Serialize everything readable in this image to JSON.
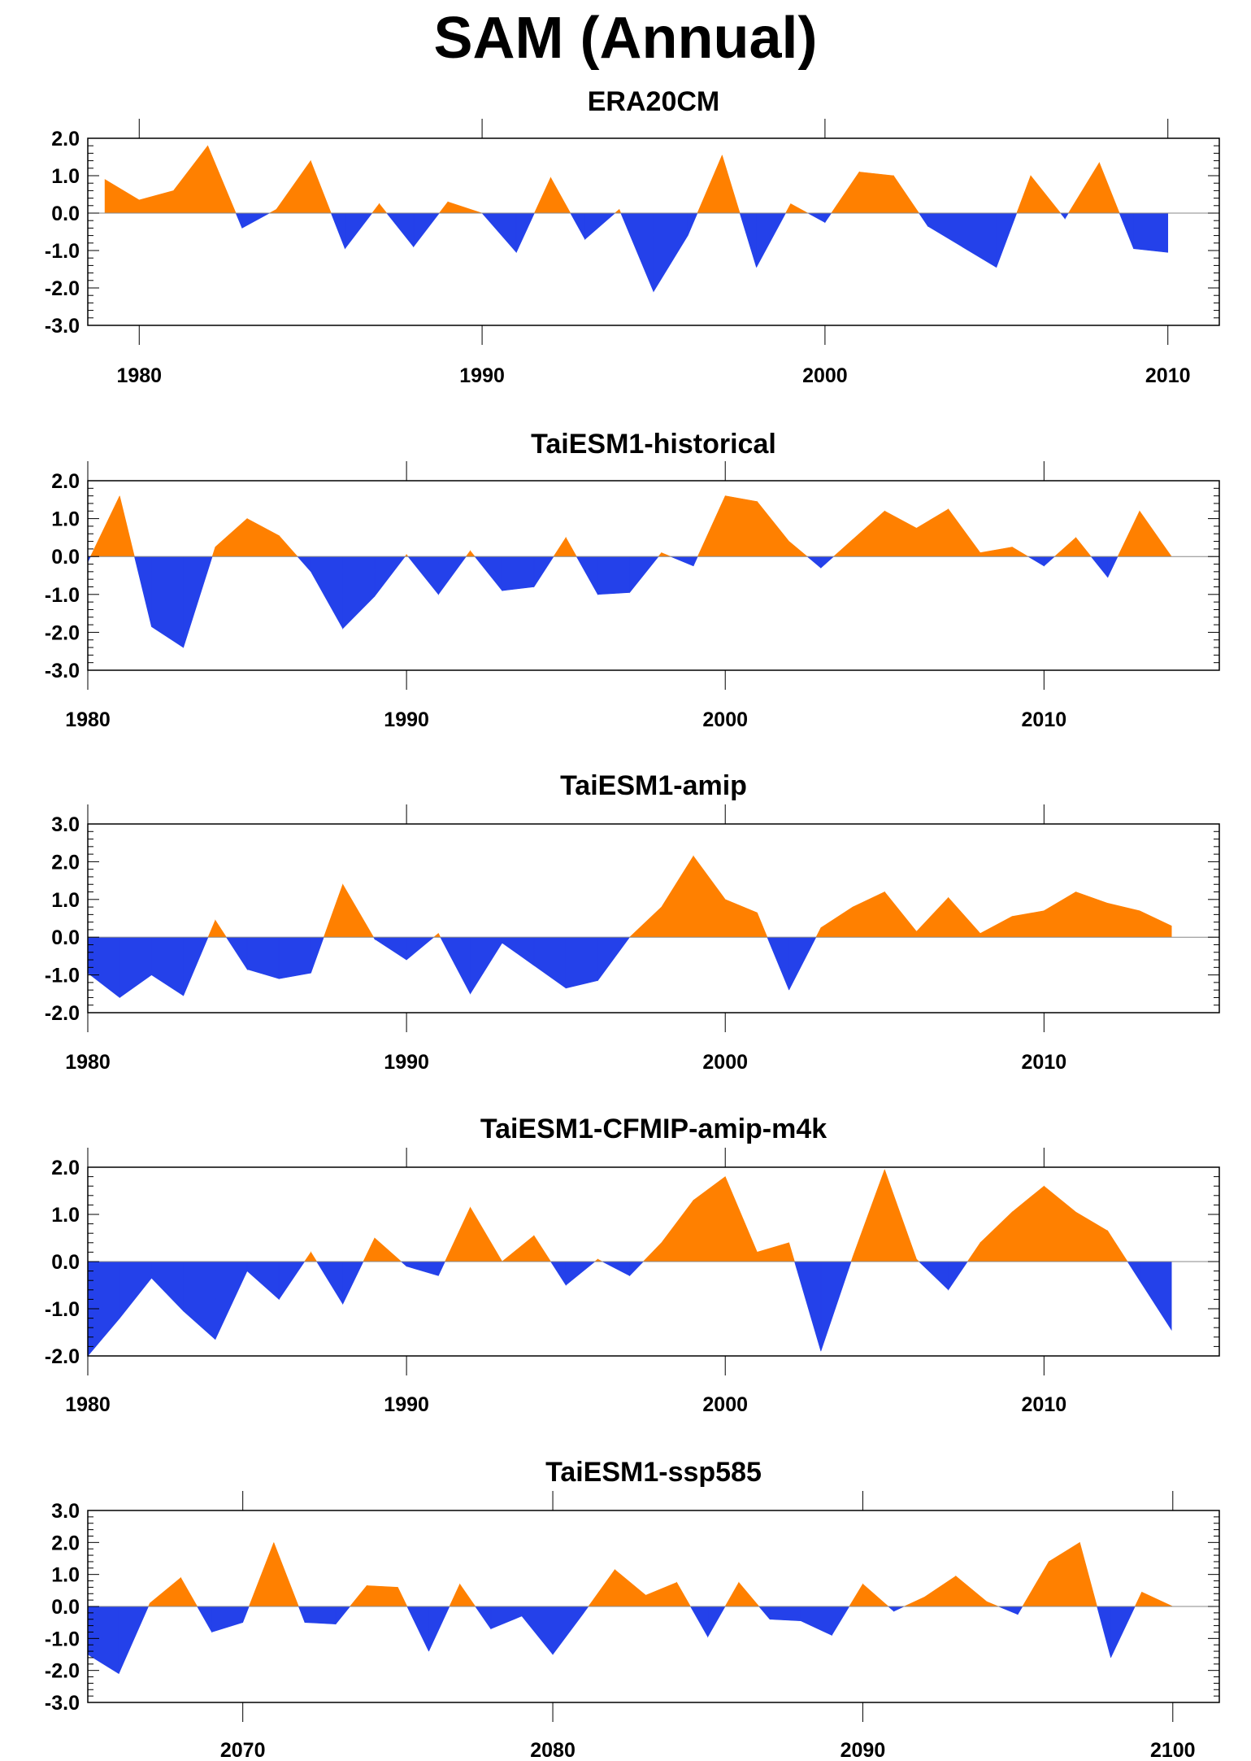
{
  "title": "SAM (Annual)",
  "colors": {
    "positive": "#ff8000",
    "negative": "#2441ea",
    "axis": "#000000"
  },
  "chart_data": [
    {
      "type": "area",
      "title": "ERA20CM",
      "xlabel": "",
      "ylabel": "",
      "xlim": [
        1978.5,
        2011.5
      ],
      "ylim": [
        -3.0,
        2.0
      ],
      "xticks": [
        1980,
        1990,
        2000,
        2010
      ],
      "yticks": [
        -3.0,
        -2.0,
        -1.0,
        0.0,
        1.0,
        2.0
      ],
      "x": [
        1979,
        1980,
        1981,
        1982,
        1983,
        1984,
        1985,
        1986,
        1987,
        1988,
        1989,
        1990,
        1991,
        1992,
        1993,
        1994,
        1995,
        1996,
        1997,
        1998,
        1999,
        2000,
        2001,
        2002,
        2003,
        2004,
        2005,
        2006,
        2007,
        2008,
        2009,
        2010
      ],
      "y": [
        0.9,
        0.35,
        0.6,
        1.8,
        -0.4,
        0.1,
        1.4,
        -0.95,
        0.25,
        -0.9,
        0.3,
        0.0,
        -1.05,
        0.95,
        -0.7,
        0.1,
        -2.1,
        -0.6,
        1.55,
        -1.45,
        0.25,
        -0.25,
        1.1,
        1.0,
        -0.35,
        -0.9,
        -1.45,
        1.0,
        -0.15,
        1.35,
        -0.95,
        -1.05
      ]
    },
    {
      "type": "area",
      "title": "TaiESM1-historical",
      "xlabel": "",
      "ylabel": "",
      "xlim": [
        1980,
        2015.5
      ],
      "ylim": [
        -3.0,
        2.0
      ],
      "xticks": [
        1980,
        1990,
        2000,
        2010
      ],
      "yticks": [
        -3.0,
        -2.0,
        -1.0,
        0.0,
        1.0,
        2.0
      ],
      "x": [
        1980,
        1981,
        1982,
        1983,
        1984,
        1985,
        1986,
        1987,
        1988,
        1989,
        1990,
        1991,
        1992,
        1993,
        1994,
        1995,
        1996,
        1997,
        1998,
        1999,
        2000,
        2001,
        2002,
        2003,
        2004,
        2005,
        2006,
        2007,
        2008,
        2009,
        2010,
        2011,
        2012,
        2013,
        2014
      ],
      "y": [
        -0.15,
        1.6,
        -1.85,
        -2.4,
        0.25,
        1.0,
        0.55,
        -0.4,
        -1.9,
        -1.05,
        0.05,
        -1.0,
        0.15,
        -0.9,
        -0.8,
        0.5,
        -1.0,
        -0.95,
        0.1,
        -0.25,
        1.6,
        1.45,
        0.4,
        -0.3,
        0.45,
        1.2,
        0.75,
        1.25,
        0.1,
        0.25,
        -0.25,
        0.5,
        -0.55,
        1.2,
        0.0
      ]
    },
    {
      "type": "area",
      "title": "TaiESM1-amip",
      "xlabel": "",
      "ylabel": "",
      "xlim": [
        1980,
        2015.5
      ],
      "ylim": [
        -2.0,
        3.0
      ],
      "xticks": [
        1980,
        1990,
        2000,
        2010
      ],
      "yticks": [
        -2.0,
        -1.0,
        0.0,
        1.0,
        2.0,
        3.0
      ],
      "x": [
        1980,
        1981,
        1982,
        1983,
        1984,
        1985,
        1986,
        1987,
        1988,
        1989,
        1990,
        1991,
        1992,
        1993,
        1994,
        1995,
        1996,
        1997,
        1998,
        1999,
        2000,
        2001,
        2002,
        2003,
        2004,
        2005,
        2006,
        2007,
        2008,
        2009,
        2010,
        2011,
        2012,
        2013,
        2014
      ],
      "y": [
        -0.95,
        -1.6,
        -1.0,
        -1.55,
        0.45,
        -0.85,
        -1.1,
        -0.95,
        1.4,
        -0.05,
        -0.6,
        0.1,
        -1.5,
        -0.15,
        -0.75,
        -1.35,
        -1.15,
        0.0,
        0.8,
        2.15,
        1.0,
        0.65,
        -1.4,
        0.25,
        0.8,
        1.2,
        0.15,
        1.05,
        0.1,
        0.55,
        0.7,
        1.2,
        0.9,
        0.7,
        0.3
      ]
    },
    {
      "type": "area",
      "title": "TaiESM1-CFMIP-amip-m4k",
      "xlabel": "",
      "ylabel": "",
      "xlim": [
        1980,
        2015.5
      ],
      "ylim": [
        -2.0,
        2.0
      ],
      "xticks": [
        1980,
        1990,
        2000,
        2010
      ],
      "yticks": [
        -2.0,
        -1.0,
        0.0,
        1.0,
        2.0
      ],
      "x": [
        1980,
        1981,
        1982,
        1983,
        1984,
        1985,
        1986,
        1987,
        1988,
        1989,
        1990,
        1991,
        1992,
        1993,
        1994,
        1995,
        1996,
        1997,
        1998,
        1999,
        2000,
        2001,
        2002,
        2003,
        2004,
        2005,
        2006,
        2007,
        2008,
        2009,
        2010,
        2011,
        2012,
        2013,
        2014
      ],
      "y": [
        -2.0,
        -1.2,
        -0.35,
        -1.05,
        -1.65,
        -0.2,
        -0.8,
        0.2,
        -0.9,
        0.5,
        -0.1,
        -0.3,
        1.15,
        0.0,
        0.55,
        -0.5,
        0.05,
        -0.3,
        0.4,
        1.3,
        1.8,
        0.2,
        0.4,
        -1.9,
        0.1,
        1.95,
        0.05,
        -0.6,
        0.4,
        1.05,
        1.6,
        1.05,
        0.65,
        -0.4,
        -1.45
      ]
    },
    {
      "type": "area",
      "title": "TaiESM1-ssp585",
      "xlabel": "",
      "ylabel": "",
      "xlim": [
        2065,
        2101.5
      ],
      "ylim": [
        -3.0,
        3.0
      ],
      "xticks": [
        2070,
        2080,
        2090,
        2100
      ],
      "yticks": [
        -3.0,
        -2.0,
        -1.0,
        0.0,
        1.0,
        2.0,
        3.0
      ],
      "x": [
        2065,
        2066,
        2067,
        2068,
        2069,
        2070,
        2071,
        2072,
        2073,
        2074,
        2075,
        2076,
        2077,
        2078,
        2079,
        2080,
        2081,
        2082,
        2083,
        2084,
        2085,
        2086,
        2087,
        2088,
        2089,
        2090,
        2091,
        2092,
        2093,
        2094,
        2095,
        2096,
        2097,
        2098,
        2099,
        2100
      ],
      "y": [
        -1.5,
        -2.1,
        0.1,
        0.9,
        -0.8,
        -0.5,
        2.0,
        -0.5,
        -0.55,
        0.65,
        0.6,
        -1.4,
        0.7,
        -0.7,
        -0.3,
        -1.5,
        -0.2,
        1.15,
        0.35,
        0.75,
        -0.95,
        0.75,
        -0.4,
        -0.45,
        -0.9,
        0.7,
        -0.15,
        0.3,
        0.95,
        0.15,
        -0.25,
        1.4,
        2.0,
        -1.6,
        0.45,
        0.0
      ]
    }
  ]
}
